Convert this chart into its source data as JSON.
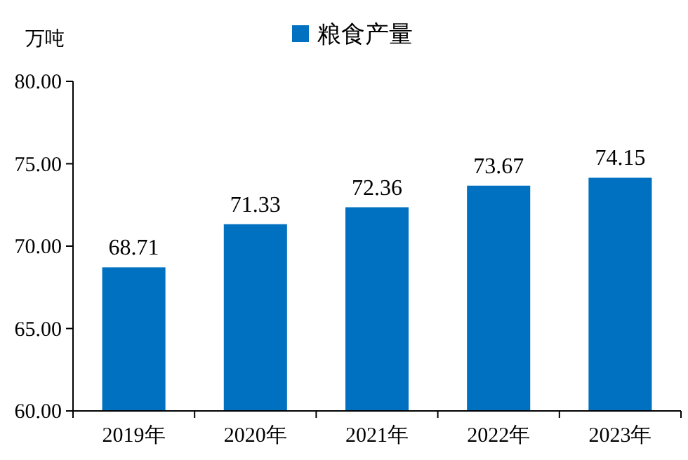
{
  "chart_data": {
    "type": "bar",
    "ylabel": "万吨",
    "categories": [
      "2019年",
      "2020年",
      "2021年",
      "2022年",
      "2023年"
    ],
    "series": [
      {
        "name": "粮食产量",
        "color": "#0070c0",
        "values": [
          68.71,
          71.33,
          72.36,
          73.67,
          74.15
        ]
      }
    ],
    "ylim": [
      60,
      80
    ],
    "yticks": [
      {
        "value": 60,
        "label": "60.00"
      },
      {
        "value": 65,
        "label": "65.00"
      },
      {
        "value": 70,
        "label": "70.00"
      },
      {
        "value": 75,
        "label": "75.00"
      },
      {
        "value": 80,
        "label": "80.00"
      }
    ],
    "data_labels": true,
    "legend": "top",
    "grid": false
  }
}
